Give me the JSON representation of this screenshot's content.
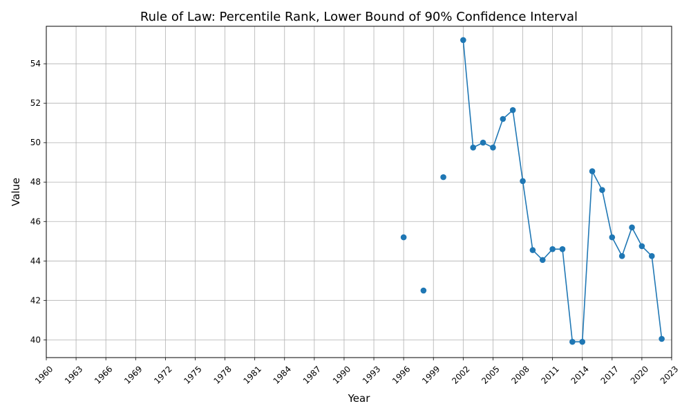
{
  "chart_data": {
    "type": "line",
    "title": "Rule of Law: Percentile Rank, Lower Bound of 90% Confidence Interval",
    "xlabel": "Year",
    "ylabel": "Value",
    "xlim": [
      1960,
      2023
    ],
    "ylim": [
      39.1,
      55.9
    ],
    "xticks": [
      1960,
      1963,
      1966,
      1969,
      1972,
      1975,
      1978,
      1981,
      1984,
      1987,
      1990,
      1993,
      1996,
      1999,
      2002,
      2005,
      2008,
      2011,
      2014,
      2017,
      2020,
      2023
    ],
    "yticks": [
      40,
      42,
      44,
      46,
      48,
      50,
      52,
      54
    ],
    "grid": true,
    "series": [
      {
        "color": "#1f77b4",
        "points": [
          {
            "x": 1996,
            "y": 45.2
          },
          {
            "x": 1998,
            "y": 42.5
          },
          {
            "x": 2000,
            "y": 48.25
          },
          {
            "x": 2002,
            "y": 55.2
          },
          {
            "x": 2003,
            "y": 49.75
          },
          {
            "x": 2004,
            "y": 50.0
          },
          {
            "x": 2005,
            "y": 49.75
          },
          {
            "x": 2006,
            "y": 51.2
          },
          {
            "x": 2007,
            "y": 51.65
          },
          {
            "x": 2008,
            "y": 48.05
          },
          {
            "x": 2009,
            "y": 44.55
          },
          {
            "x": 2010,
            "y": 44.05
          },
          {
            "x": 2011,
            "y": 44.6
          },
          {
            "x": 2012,
            "y": 44.6
          },
          {
            "x": 2013,
            "y": 39.9
          },
          {
            "x": 2014,
            "y": 39.9
          },
          {
            "x": 2015,
            "y": 48.55
          },
          {
            "x": 2016,
            "y": 47.6
          },
          {
            "x": 2017,
            "y": 45.2
          },
          {
            "x": 2018,
            "y": 44.25
          },
          {
            "x": 2019,
            "y": 45.7
          },
          {
            "x": 2020,
            "y": 44.75
          },
          {
            "x": 2021,
            "y": 44.25
          },
          {
            "x": 2022,
            "y": 40.05
          }
        ]
      }
    ]
  }
}
